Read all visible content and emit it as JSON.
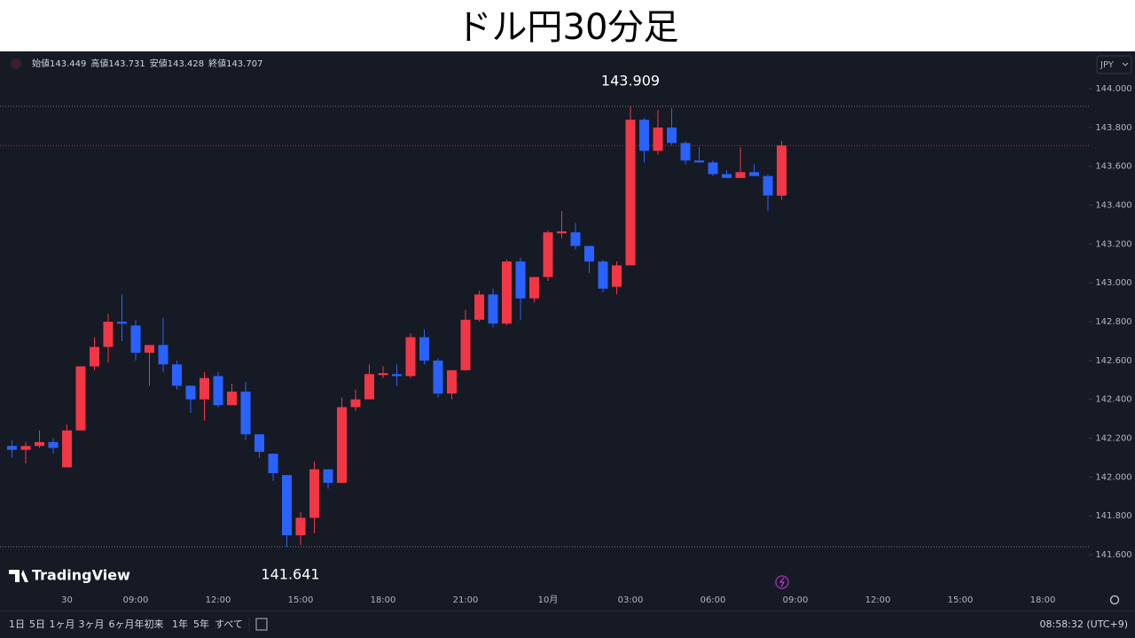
{
  "chart_data": {
    "type": "candlestick",
    "title": "ドル円30分足",
    "categories": [
      null,
      null,
      null,
      null,
      "30",
      null,
      null,
      null,
      null,
      "09:00",
      null,
      null,
      null,
      null,
      null,
      "12:00",
      null,
      null,
      null,
      null,
      null,
      "15:00",
      null,
      null,
      null,
      null,
      null,
      "18:00",
      null,
      null,
      null,
      null,
      null,
      "21:00",
      null,
      null,
      null,
      null,
      null,
      "10月",
      null,
      null,
      null,
      null,
      null,
      "03:00",
      null,
      null,
      null,
      null,
      null,
      "06:00",
      null,
      null,
      null,
      null,
      null,
      "09:00",
      null,
      null,
      null,
      null,
      null,
      "12:00",
      null,
      null,
      null,
      null,
      null,
      "15:00",
      null,
      null,
      null,
      null,
      null,
      "18:00"
    ],
    "open": [
      142.16,
      142.14,
      142.16,
      142.18,
      142.05,
      142.24,
      142.57,
      142.67,
      142.8,
      142.78,
      142.64,
      142.68,
      142.58,
      142.47,
      142.4,
      142.52,
      142.37,
      142.44,
      142.22,
      142.12,
      142.01,
      141.7,
      141.79,
      142.04,
      141.97,
      142.36,
      142.4,
      142.525,
      142.53,
      142.52,
      142.72,
      142.6,
      142.43,
      142.55,
      142.81,
      142.94,
      142.79,
      143.11,
      142.92,
      143.03,
      143.255,
      143.26,
      143.19,
      143.11,
      142.98,
      143.09,
      143.84,
      143.68,
      143.8,
      143.72,
      143.63,
      143.62,
      143.56,
      143.54,
      143.57,
      143.55,
      143.449,
      null,
      null,
      null,
      null,
      null,
      null,
      null,
      null,
      null,
      null,
      null,
      null,
      null,
      null,
      null,
      null,
      null,
      null,
      null
    ],
    "high": [
      142.19,
      142.18,
      142.24,
      142.2,
      142.27,
      142.57,
      142.72,
      142.84,
      142.94,
      142.81,
      142.68,
      142.82,
      142.6,
      142.47,
      142.54,
      142.54,
      142.48,
      142.49,
      142.22,
      142.12,
      142.01,
      141.82,
      142.08,
      142.04,
      142.41,
      142.45,
      142.58,
      142.57,
      142.58,
      142.74,
      142.76,
      142.61,
      142.55,
      142.86,
      142.96,
      142.97,
      143.12,
      143.13,
      143.03,
      143.27,
      143.37,
      143.31,
      143.19,
      143.12,
      143.11,
      143.909,
      143.85,
      143.89,
      143.9,
      143.73,
      143.7,
      143.63,
      143.58,
      143.7,
      143.61,
      143.56,
      143.731,
      null,
      null,
      null,
      null,
      null,
      null,
      null,
      null,
      null,
      null,
      null,
      null,
      null,
      null,
      null,
      null,
      null,
      null,
      null
    ],
    "low": [
      142.1,
      142.07,
      142.15,
      142.12,
      142.05,
      142.24,
      142.55,
      142.59,
      142.7,
      142.6,
      142.47,
      142.54,
      142.45,
      142.33,
      142.29,
      142.36,
      142.37,
      142.19,
      142.1,
      141.98,
      141.641,
      141.65,
      141.71,
      141.94,
      141.97,
      142.34,
      142.4,
      142.51,
      142.47,
      142.51,
      142.58,
      142.41,
      142.4,
      142.55,
      142.8,
      142.77,
      142.78,
      142.81,
      142.9,
      143.01,
      143.23,
      143.17,
      143.05,
      142.95,
      142.94,
      143.09,
      143.62,
      143.66,
      143.71,
      143.61,
      143.62,
      143.55,
      143.54,
      143.54,
      143.55,
      143.37,
      143.428,
      null,
      null,
      null,
      null,
      null,
      null,
      null,
      null,
      null,
      null,
      null,
      null,
      null,
      null,
      null,
      null,
      null,
      null,
      null
    ],
    "close": [
      142.14,
      142.16,
      142.18,
      142.15,
      142.24,
      142.57,
      142.67,
      142.8,
      142.79,
      142.64,
      142.68,
      142.58,
      142.47,
      142.4,
      142.51,
      142.37,
      142.44,
      142.22,
      142.13,
      142.02,
      141.7,
      141.79,
      142.04,
      141.97,
      142.36,
      142.4,
      142.53,
      142.535,
      142.52,
      142.72,
      142.6,
      142.43,
      142.55,
      142.81,
      142.94,
      142.79,
      143.11,
      142.92,
      143.03,
      143.26,
      143.265,
      143.19,
      143.11,
      142.97,
      143.09,
      143.84,
      143.68,
      143.8,
      143.72,
      143.63,
      143.62,
      143.56,
      143.54,
      143.57,
      143.55,
      143.45,
      143.707,
      null,
      null,
      null,
      null,
      null,
      null,
      null,
      null,
      null,
      null,
      null,
      null,
      null,
      null,
      null,
      null,
      null,
      null,
      null
    ],
    "up_color": "#f23645",
    "down_color": "#2962ff",
    "ylim": [
      141.422,
      144.192
    ],
    "yticks": [
      {
        "value": 141.6,
        "label": "141.600"
      },
      {
        "value": 141.8,
        "label": "141.800"
      },
      {
        "value": 142.0,
        "label": "142.000"
      },
      {
        "value": 142.2,
        "label": "142.200"
      },
      {
        "value": 142.4,
        "label": "142.400"
      },
      {
        "value": 142.6,
        "label": "142.600"
      },
      {
        "value": 142.8,
        "label": "142.800"
      },
      {
        "value": 143.0,
        "label": "143.000"
      },
      {
        "value": 143.2,
        "label": "143.200"
      },
      {
        "value": 143.4,
        "label": "143.400"
      },
      {
        "value": 143.6,
        "label": "143.600"
      },
      {
        "value": 143.8,
        "label": "143.800"
      },
      {
        "value": 144.0,
        "label": "144.000"
      }
    ],
    "grid": false,
    "high_label_index": 45,
    "low_label_index": 20
  },
  "ui": {
    "legend": [
      "始値",
      "高値",
      "安値",
      "終値"
    ],
    "currency": "JPY",
    "logo": "TradingView",
    "ranges": [
      "1日",
      "5日",
      "1ヶ月",
      "3ヶ月",
      "6ヶ月",
      "年初来",
      "1年",
      "5年",
      "すべて"
    ],
    "clock": "08:58:32 (UTC+9)"
  }
}
